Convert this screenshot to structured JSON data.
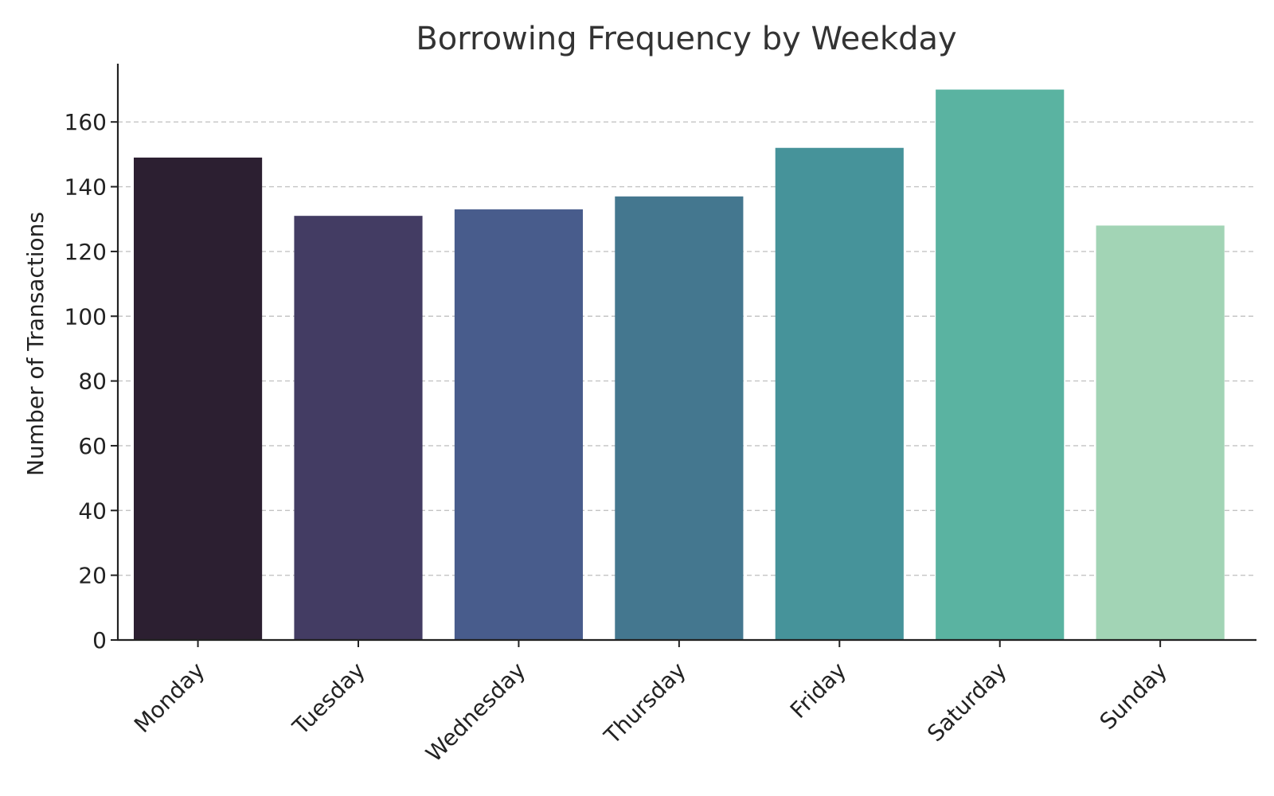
{
  "chart_data": {
    "type": "bar",
    "title": "Borrowing Frequency by Weekday",
    "xlabel": "",
    "ylabel": "Number of Transactions",
    "categories": [
      "Monday",
      "Tuesday",
      "Wednesday",
      "Thursday",
      "Friday",
      "Saturday",
      "Sunday"
    ],
    "values": [
      149,
      131,
      133,
      137,
      152,
      170,
      128
    ],
    "colors": [
      "#2c1f31",
      "#433c63",
      "#485c8c",
      "#44778f",
      "#46939a",
      "#5ab3a1",
      "#a2d4b5"
    ],
    "ylim": [
      0,
      178
    ],
    "yticks": [
      0,
      20,
      40,
      60,
      80,
      100,
      120,
      140,
      160
    ],
    "grid": "y-dashed",
    "legend": "none"
  }
}
